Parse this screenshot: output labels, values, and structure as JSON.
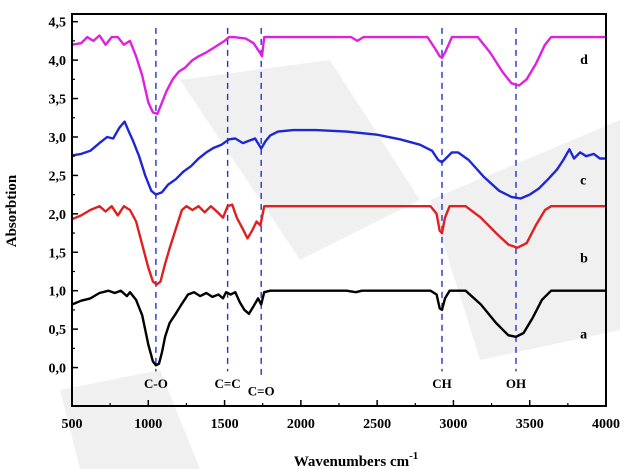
{
  "chart_data": {
    "type": "line",
    "xlabel": "Wavenumbers cm",
    "xlabel_sup": "-1",
    "ylabel": "Absorbtion",
    "xlim": [
      500,
      4000
    ],
    "ylim": [
      -0.5,
      4.6
    ],
    "x_ticks": [
      500,
      1000,
      1500,
      2000,
      2500,
      3000,
      3500,
      4000
    ],
    "x_tick_labels": [
      "500",
      "1000",
      "1500",
      "2000",
      "2500",
      "3000",
      "3500",
      "4000"
    ],
    "y_ticks": [
      0,
      0.5,
      1,
      1.5,
      2,
      2.5,
      3,
      3.5,
      4,
      4.5
    ],
    "y_tick_labels": [
      "0,0",
      "0,5",
      "1,0",
      "1,5",
      "2,0",
      "2,5",
      "3,0",
      "3,5",
      "4,0",
      "4,5"
    ],
    "grid": false,
    "series": [
      {
        "name": "a",
        "color": "#000000",
        "points": [
          [
            500,
            0.82
          ],
          [
            560,
            0.87
          ],
          [
            620,
            0.9
          ],
          [
            680,
            0.97
          ],
          [
            740,
            1.0
          ],
          [
            780,
            0.97
          ],
          [
            820,
            1.0
          ],
          [
            860,
            0.93
          ],
          [
            880,
            0.98
          ],
          [
            920,
            0.88
          ],
          [
            960,
            0.68
          ],
          [
            1000,
            0.3
          ],
          [
            1030,
            0.08
          ],
          [
            1050,
            0.03
          ],
          [
            1070,
            0.05
          ],
          [
            1090,
            0.2
          ],
          [
            1110,
            0.4
          ],
          [
            1140,
            0.58
          ],
          [
            1180,
            0.7
          ],
          [
            1220,
            0.83
          ],
          [
            1260,
            0.95
          ],
          [
            1300,
            0.98
          ],
          [
            1340,
            0.93
          ],
          [
            1380,
            0.97
          ],
          [
            1420,
            0.92
          ],
          [
            1460,
            0.95
          ],
          [
            1490,
            0.9
          ],
          [
            1510,
            0.98
          ],
          [
            1540,
            0.95
          ],
          [
            1570,
            0.98
          ],
          [
            1600,
            0.85
          ],
          [
            1630,
            0.75
          ],
          [
            1660,
            0.7
          ],
          [
            1690,
            0.8
          ],
          [
            1720,
            0.9
          ],
          [
            1740,
            0.82
          ],
          [
            1760,
            0.98
          ],
          [
            1800,
            1.0
          ],
          [
            2300,
            1.0
          ],
          [
            2360,
            0.98
          ],
          [
            2400,
            1.0
          ],
          [
            2850,
            1.0
          ],
          [
            2890,
            0.95
          ],
          [
            2910,
            0.77
          ],
          [
            2925,
            0.75
          ],
          [
            2945,
            0.9
          ],
          [
            2975,
            1.0
          ],
          [
            3080,
            1.0
          ],
          [
            3180,
            0.82
          ],
          [
            3280,
            0.58
          ],
          [
            3360,
            0.42
          ],
          [
            3410,
            0.4
          ],
          [
            3460,
            0.45
          ],
          [
            3520,
            0.65
          ],
          [
            3580,
            0.88
          ],
          [
            3640,
            1.0
          ],
          [
            4000,
            1.0
          ]
        ]
      },
      {
        "name": "b",
        "color": "#e02020",
        "points": [
          [
            500,
            1.93
          ],
          [
            560,
            1.98
          ],
          [
            620,
            2.05
          ],
          [
            680,
            2.1
          ],
          [
            720,
            2.03
          ],
          [
            760,
            2.1
          ],
          [
            800,
            1.98
          ],
          [
            840,
            2.1
          ],
          [
            880,
            2.05
          ],
          [
            920,
            1.9
          ],
          [
            960,
            1.6
          ],
          [
            1000,
            1.3
          ],
          [
            1030,
            1.12
          ],
          [
            1055,
            1.08
          ],
          [
            1080,
            1.12
          ],
          [
            1110,
            1.35
          ],
          [
            1140,
            1.55
          ],
          [
            1180,
            1.8
          ],
          [
            1220,
            2.05
          ],
          [
            1250,
            2.1
          ],
          [
            1290,
            2.05
          ],
          [
            1330,
            2.1
          ],
          [
            1370,
            2.02
          ],
          [
            1410,
            2.1
          ],
          [
            1450,
            2.03
          ],
          [
            1490,
            1.95
          ],
          [
            1520,
            2.1
          ],
          [
            1550,
            2.12
          ],
          [
            1580,
            1.95
          ],
          [
            1620,
            1.8
          ],
          [
            1650,
            1.68
          ],
          [
            1680,
            1.78
          ],
          [
            1710,
            1.9
          ],
          [
            1735,
            1.85
          ],
          [
            1760,
            2.1
          ],
          [
            1800,
            2.1
          ],
          [
            2850,
            2.1
          ],
          [
            2890,
            2.0
          ],
          [
            2910,
            1.78
          ],
          [
            2925,
            1.75
          ],
          [
            2945,
            1.95
          ],
          [
            2975,
            2.1
          ],
          [
            3080,
            2.1
          ],
          [
            3180,
            1.95
          ],
          [
            3280,
            1.75
          ],
          [
            3360,
            1.6
          ],
          [
            3420,
            1.56
          ],
          [
            3480,
            1.62
          ],
          [
            3540,
            1.85
          ],
          [
            3600,
            2.05
          ],
          [
            3640,
            2.1
          ],
          [
            4000,
            2.1
          ]
        ]
      },
      {
        "name": "c",
        "color": "#1e28d2",
        "points": [
          [
            500,
            2.76
          ],
          [
            560,
            2.78
          ],
          [
            620,
            2.82
          ],
          [
            680,
            2.92
          ],
          [
            730,
            3.0
          ],
          [
            770,
            2.98
          ],
          [
            810,
            3.12
          ],
          [
            845,
            3.2
          ],
          [
            870,
            3.08
          ],
          [
            900,
            2.95
          ],
          [
            940,
            2.75
          ],
          [
            980,
            2.5
          ],
          [
            1020,
            2.3
          ],
          [
            1050,
            2.25
          ],
          [
            1090,
            2.28
          ],
          [
            1130,
            2.38
          ],
          [
            1180,
            2.45
          ],
          [
            1230,
            2.55
          ],
          [
            1280,
            2.62
          ],
          [
            1330,
            2.72
          ],
          [
            1380,
            2.8
          ],
          [
            1430,
            2.86
          ],
          [
            1480,
            2.9
          ],
          [
            1530,
            2.97
          ],
          [
            1570,
            2.98
          ],
          [
            1620,
            2.92
          ],
          [
            1660,
            2.95
          ],
          [
            1700,
            2.98
          ],
          [
            1740,
            2.85
          ],
          [
            1770,
            2.95
          ],
          [
            1800,
            3.02
          ],
          [
            1850,
            3.07
          ],
          [
            1950,
            3.09
          ],
          [
            2100,
            3.09
          ],
          [
            2300,
            3.07
          ],
          [
            2500,
            3.03
          ],
          [
            2650,
            2.97
          ],
          [
            2780,
            2.9
          ],
          [
            2860,
            2.82
          ],
          [
            2900,
            2.7
          ],
          [
            2925,
            2.67
          ],
          [
            2950,
            2.72
          ],
          [
            2990,
            2.8
          ],
          [
            3030,
            2.8
          ],
          [
            3100,
            2.7
          ],
          [
            3200,
            2.48
          ],
          [
            3300,
            2.3
          ],
          [
            3380,
            2.22
          ],
          [
            3440,
            2.2
          ],
          [
            3500,
            2.25
          ],
          [
            3560,
            2.33
          ],
          [
            3620,
            2.45
          ],
          [
            3680,
            2.58
          ],
          [
            3720,
            2.7
          ],
          [
            3760,
            2.84
          ],
          [
            3790,
            2.72
          ],
          [
            3830,
            2.8
          ],
          [
            3870,
            2.75
          ],
          [
            3920,
            2.78
          ],
          [
            3960,
            2.72
          ],
          [
            4000,
            2.72
          ]
        ]
      },
      {
        "name": "d",
        "color": "#e020e0",
        "points": [
          [
            500,
            4.2
          ],
          [
            560,
            4.22
          ],
          [
            600,
            4.3
          ],
          [
            640,
            4.25
          ],
          [
            680,
            4.32
          ],
          [
            720,
            4.2
          ],
          [
            760,
            4.3
          ],
          [
            800,
            4.3
          ],
          [
            840,
            4.2
          ],
          [
            880,
            4.25
          ],
          [
            920,
            4.05
          ],
          [
            960,
            3.8
          ],
          [
            1000,
            3.45
          ],
          [
            1030,
            3.32
          ],
          [
            1060,
            3.3
          ],
          [
            1080,
            3.4
          ],
          [
            1120,
            3.6
          ],
          [
            1160,
            3.75
          ],
          [
            1200,
            3.85
          ],
          [
            1240,
            3.9
          ],
          [
            1290,
            4.0
          ],
          [
            1330,
            4.05
          ],
          [
            1380,
            4.1
          ],
          [
            1420,
            4.15
          ],
          [
            1460,
            4.2
          ],
          [
            1500,
            4.25
          ],
          [
            1530,
            4.3
          ],
          [
            1560,
            4.3
          ],
          [
            1640,
            4.28
          ],
          [
            1690,
            4.22
          ],
          [
            1730,
            4.1
          ],
          [
            1745,
            4.05
          ],
          [
            1760,
            4.3
          ],
          [
            1800,
            4.3
          ],
          [
            2330,
            4.3
          ],
          [
            2370,
            4.25
          ],
          [
            2410,
            4.3
          ],
          [
            2830,
            4.3
          ],
          [
            2880,
            4.15
          ],
          [
            2910,
            4.05
          ],
          [
            2925,
            4.03
          ],
          [
            2950,
            4.12
          ],
          [
            2990,
            4.3
          ],
          [
            3160,
            4.3
          ],
          [
            3240,
            4.1
          ],
          [
            3320,
            3.85
          ],
          [
            3380,
            3.7
          ],
          [
            3430,
            3.67
          ],
          [
            3480,
            3.75
          ],
          [
            3540,
            3.95
          ],
          [
            3600,
            4.2
          ],
          [
            3640,
            4.3
          ],
          [
            4000,
            4.3
          ]
        ]
      }
    ],
    "series_label_positions": [
      {
        "name": "a",
        "x": 3830,
        "y": 0.38
      },
      {
        "name": "b",
        "x": 3830,
        "y": 1.37
      },
      {
        "name": "c",
        "x": 3830,
        "y": 2.38
      },
      {
        "name": "d",
        "x": 3830,
        "y": 3.95
      }
    ],
    "annotations": [
      {
        "label": "C-O",
        "x": 1050,
        "label_y": -0.2
      },
      {
        "label": "C=C",
        "x": 1520,
        "label_y": -0.2
      },
      {
        "label": "C=O",
        "x": 1740,
        "label_y": -0.3
      },
      {
        "label": "CH",
        "x": 2925,
        "label_y": -0.2
      },
      {
        "label": "OH",
        "x": 3410,
        "label_y": -0.2
      }
    ],
    "annotation_line_color": "#2233cc"
  }
}
